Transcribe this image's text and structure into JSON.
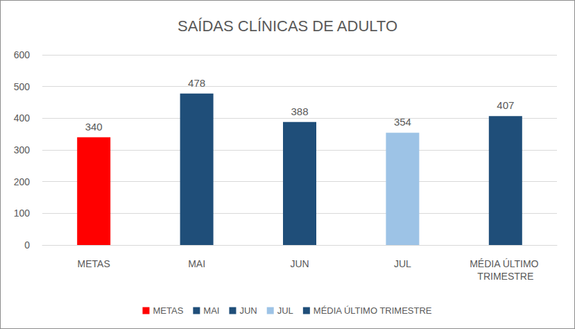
{
  "chart_data": {
    "type": "bar",
    "title": "SAÍDAS CLÍNICAS DE ADULTO",
    "categories": [
      "METAS",
      "MAI",
      "JUN",
      "JUL",
      "MÉDIA ÚLTIMO TRIMESTRE"
    ],
    "values": [
      340,
      478,
      388,
      354,
      407
    ],
    "colors": [
      "#ff0000",
      "#1f4e79",
      "#1f4e79",
      "#9dc3e6",
      "#1f4e79"
    ],
    "ylim": [
      0,
      600
    ],
    "yticks": [
      0,
      100,
      200,
      300,
      400,
      500,
      600
    ],
    "grid": true,
    "data_labels": true,
    "legend": "bottom"
  }
}
